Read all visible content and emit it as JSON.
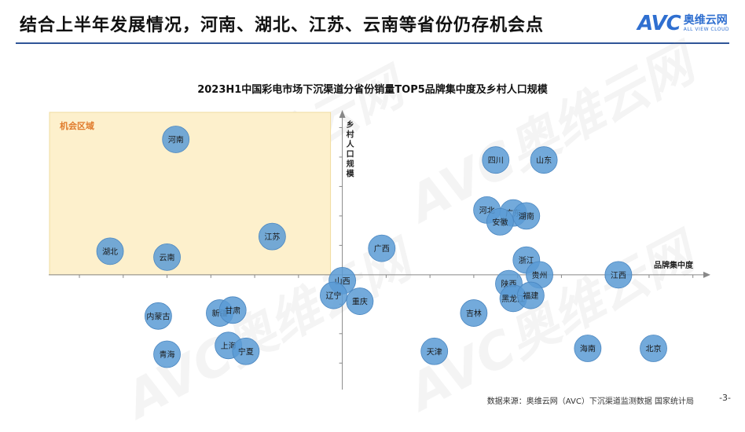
{
  "header": {
    "title": "结合上半年发展情况，河南、湖北、江苏、云南等省份仍存机会点",
    "logo_mark": "AVC",
    "logo_cn": "奥维云网",
    "logo_en": "ALL VIEW CLOUD"
  },
  "watermark": {
    "mark": "AVC奥维云网",
    "sub": "ALL VIEW CLOUD"
  },
  "colors": {
    "bubble": "#5b9bd5",
    "bubble_edge": "#4a86c0",
    "opportunity_fill": "#fdf0cc",
    "opportunity_edge": "#f0dca0",
    "opportunity_label": "#e07a2a",
    "axis": "#888888",
    "accent": "#2f5597"
  },
  "chart_data": {
    "type": "scatter",
    "title": "2023H1中国彩电市场下沉渠道分省份销量TOP5品牌集中度及乡村人口规模",
    "xlabel": "品牌集中度",
    "ylabel": "乡村人口规模",
    "region_label": "机会区域",
    "points": [
      {
        "name": "河南",
        "x": -3.8,
        "y": 4.6
      },
      {
        "name": "四川",
        "x": 3.5,
        "y": 3.9
      },
      {
        "name": "山东",
        "x": 4.6,
        "y": 3.9
      },
      {
        "name": "河北",
        "x": 3.3,
        "y": 2.2
      },
      {
        "name": "广东",
        "x": 3.9,
        "y": 2.1
      },
      {
        "name": "安徽",
        "x": 3.6,
        "y": 1.8
      },
      {
        "name": "湖南",
        "x": 4.2,
        "y": 2.0
      },
      {
        "name": "江苏",
        "x": -1.6,
        "y": 1.3
      },
      {
        "name": "湖北",
        "x": -5.3,
        "y": 0.8
      },
      {
        "name": "云南",
        "x": -4.0,
        "y": 0.6
      },
      {
        "name": "广西",
        "x": 0.9,
        "y": 0.9
      },
      {
        "name": "浙江",
        "x": 4.2,
        "y": 0.5
      },
      {
        "name": "贵州",
        "x": 4.5,
        "y": 0.0
      },
      {
        "name": "江西",
        "x": 6.3,
        "y": 0.0
      },
      {
        "name": "山西",
        "x": 0.0,
        "y": -0.2
      },
      {
        "name": "辽宁",
        "x": -0.2,
        "y": -0.7
      },
      {
        "name": "重庆",
        "x": 0.4,
        "y": -0.9
      },
      {
        "name": "陕西",
        "x": 3.8,
        "y": -0.3
      },
      {
        "name": "黑龙江",
        "x": 3.9,
        "y": -0.8
      },
      {
        "name": "福建",
        "x": 4.3,
        "y": -0.7
      },
      {
        "name": "吉林",
        "x": 3.0,
        "y": -1.3
      },
      {
        "name": "内蒙古",
        "x": -4.2,
        "y": -1.4
      },
      {
        "name": "新疆",
        "x": -2.8,
        "y": -1.3
      },
      {
        "name": "甘肃",
        "x": -2.5,
        "y": -1.2
      },
      {
        "name": "上海",
        "x": -2.6,
        "y": -2.4
      },
      {
        "name": "宁夏",
        "x": -2.2,
        "y": -2.6
      },
      {
        "name": "青海",
        "x": -4.0,
        "y": -2.7
      },
      {
        "name": "天津",
        "x": 2.1,
        "y": -2.6
      },
      {
        "name": "海南",
        "x": 5.6,
        "y": -2.5
      },
      {
        "name": "北京",
        "x": 7.1,
        "y": -2.5
      }
    ],
    "xlim": [
      -6.7,
      8.4
    ],
    "ylim": [
      -3.9,
      5.6
    ],
    "grid": false
  },
  "footer": {
    "source": "数据来源：奥维云网（AVC）下沉渠道监测数据 国家统计局",
    "page": "-3-"
  }
}
